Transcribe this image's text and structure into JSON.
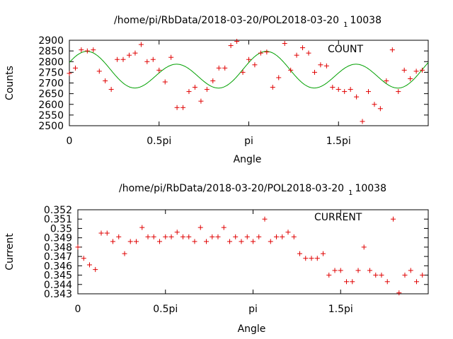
{
  "chart_data": [
    {
      "type": "scatter",
      "title": "/home/pi/RbData/2018-03-20/POL2018-03-20_1_10038",
      "title_main": "/home/pi/RbData/2018-03-20/POL2018-03-20",
      "title_sub": "1",
      "title_tail": "10038",
      "xlabel": "Angle",
      "ylabel": "Counts",
      "xlim": [
        0,
        6.2832
      ],
      "ylim": [
        2500,
        2900
      ],
      "xticks": [
        {
          "v": 0,
          "label": "0"
        },
        {
          "v": 1.5708,
          "label": "0.5pi"
        },
        {
          "v": 3.1416,
          "label": "pi"
        },
        {
          "v": 4.7124,
          "label": "1.5pi"
        }
      ],
      "yticks": [
        2500,
        2550,
        2600,
        2650,
        2700,
        2750,
        2800,
        2850,
        2900
      ],
      "legend": "top-right",
      "series": [
        {
          "name": "COUNT",
          "color": "#e00000",
          "marker": "plus",
          "x": [
            0.0,
            0.105,
            0.209,
            0.314,
            0.419,
            0.524,
            0.628,
            0.733,
            0.838,
            0.942,
            1.047,
            1.152,
            1.257,
            1.361,
            1.466,
            1.571,
            1.676,
            1.78,
            1.885,
            1.99,
            2.094,
            2.199,
            2.304,
            2.409,
            2.513,
            2.618,
            2.723,
            2.827,
            2.932,
            3.037,
            3.142,
            3.246,
            3.351,
            3.456,
            3.56,
            3.665,
            3.77,
            3.875,
            3.979,
            4.084,
            4.189,
            4.294,
            4.398,
            4.503,
            4.608,
            4.712,
            4.817,
            4.922,
            5.027,
            5.131,
            5.236,
            5.341,
            5.445,
            5.55,
            5.655,
            5.76,
            5.864,
            5.969,
            6.074,
            6.178
          ],
          "y": [
            2745,
            2770,
            2855,
            2850,
            2855,
            2755,
            2710,
            2670,
            2810,
            2810,
            2830,
            2840,
            2880,
            2800,
            2810,
            2760,
            2705,
            2820,
            2585,
            2585,
            2660,
            2680,
            2615,
            2670,
            2710,
            2770,
            2770,
            2875,
            2895,
            2750,
            2810,
            2785,
            2840,
            2845,
            2680,
            2725,
            2885,
            2760,
            2830,
            2865,
            2840,
            2750,
            2785,
            2780,
            2680,
            2670,
            2660,
            2670,
            2635,
            2520,
            2660,
            2600,
            2580,
            2710,
            2855,
            2660,
            2760,
            2720,
            2755,
            2760
          ]
        }
      ],
      "fit_line": {
        "color": "#00a000",
        "model": "y = 2748 + 30*cos(2x - 0.62) + 70*cos(4x - 1.23)"
      }
    },
    {
      "type": "scatter",
      "title": "/home/pi/RbData/2018-03-20/POL2018-03-20_1_10038",
      "title_main": "/home/pi/RbData/2018-03-20/POL2018-03-20",
      "title_sub": "1",
      "title_tail": "10038",
      "xlabel": "Angle",
      "ylabel": "Current",
      "xlim": [
        0,
        6.2832
      ],
      "ylim": [
        0.343,
        0.352
      ],
      "xticks": [
        {
          "v": 0,
          "label": "0"
        },
        {
          "v": 1.5708,
          "label": "0.5pi"
        },
        {
          "v": 3.1416,
          "label": "pi"
        },
        {
          "v": 4.7124,
          "label": "1.5pi"
        }
      ],
      "yticks": [
        {
          "v": 0.343,
          "label": "0.343"
        },
        {
          "v": 0.344,
          "label": "0.344"
        },
        {
          "v": 0.345,
          "label": "0.345"
        },
        {
          "v": 0.346,
          "label": "0.346"
        },
        {
          "v": 0.347,
          "label": "0.347"
        },
        {
          "v": 0.348,
          "label": "0.348"
        },
        {
          "v": 0.349,
          "label": "0.349"
        },
        {
          "v": 0.35,
          "label": "0.35"
        },
        {
          "v": 0.351,
          "label": "0.351"
        },
        {
          "v": 0.352,
          "label": "0.352"
        }
      ],
      "legend": "top-right",
      "series": [
        {
          "name": "CURRENT",
          "color": "#e00000",
          "marker": "plus",
          "x": [
            0.0,
            0.105,
            0.209,
            0.314,
            0.419,
            0.524,
            0.628,
            0.733,
            0.838,
            0.942,
            1.047,
            1.152,
            1.257,
            1.361,
            1.466,
            1.571,
            1.676,
            1.78,
            1.885,
            1.99,
            2.094,
            2.199,
            2.304,
            2.409,
            2.513,
            2.618,
            2.723,
            2.827,
            2.932,
            3.037,
            3.142,
            3.246,
            3.351,
            3.456,
            3.56,
            3.665,
            3.77,
            3.875,
            3.979,
            4.084,
            4.189,
            4.294,
            4.398,
            4.503,
            4.608,
            4.712,
            4.817,
            4.922,
            5.027,
            5.131,
            5.236,
            5.341,
            5.445,
            5.55,
            5.655,
            5.76,
            5.864,
            5.969,
            6.074,
            6.178
          ],
          "y": [
            0.348,
            0.3468,
            0.3461,
            0.3456,
            0.3495,
            0.3495,
            0.3486,
            0.3491,
            0.3473,
            0.3486,
            0.3486,
            0.3501,
            0.3491,
            0.3491,
            0.3486,
            0.3491,
            0.3491,
            0.3496,
            0.3491,
            0.3491,
            0.3486,
            0.3501,
            0.3486,
            0.3491,
            0.3491,
            0.3501,
            0.3486,
            0.3491,
            0.3486,
            0.3491,
            0.3486,
            0.3491,
            0.351,
            0.3486,
            0.3491,
            0.3491,
            0.3496,
            0.3491,
            0.3473,
            0.3468,
            0.3468,
            0.3468,
            0.3473,
            0.345,
            0.3455,
            0.3455,
            0.3443,
            0.3443,
            0.3455,
            0.348,
            0.3455,
            0.345,
            0.345,
            0.3443,
            0.351,
            0.3431,
            0.345,
            0.3455,
            0.3443,
            0.345
          ]
        }
      ]
    }
  ]
}
